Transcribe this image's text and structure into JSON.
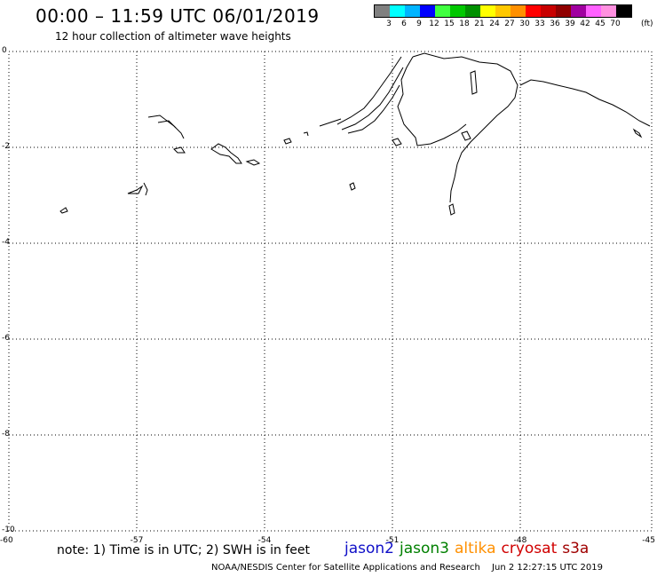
{
  "title": "00:00 – 11:59 UTC 06/01/2019",
  "subtitle": "12 hour collection of altimeter wave heights",
  "colorbar": {
    "colors": [
      "#808080",
      "#00ffff",
      "#00b4ff",
      "#0000ff",
      "#40ff40",
      "#00c800",
      "#009000",
      "#ffff00",
      "#ffc800",
      "#ff9000",
      "#ff0000",
      "#c80000",
      "#900000",
      "#a000a0",
      "#ff60ff",
      "#ff90e0",
      "#000000"
    ],
    "labels": [
      "3",
      "6",
      "9",
      "12",
      "15",
      "18",
      "21",
      "24",
      "27",
      "30",
      "33",
      "36",
      "39",
      "42",
      "45",
      "70"
    ],
    "unit": "(ft)"
  },
  "axes": {
    "y_ticks": [
      "0",
      "-2",
      "-4",
      "-6",
      "-8",
      "-10"
    ],
    "x_ticks": [
      "-60",
      "-57",
      "-54",
      "-51",
      "-48",
      "-45"
    ]
  },
  "note": "note:  1) Time is in UTC;  2) SWH is in feet",
  "legend": [
    {
      "name": "jason2",
      "color": "#1010c8"
    },
    {
      "name": "jason3",
      "color": "#008000"
    },
    {
      "name": "altika",
      "color": "#ff9000"
    },
    {
      "name": "cryosat",
      "color": "#d00000"
    },
    {
      "name": "s3a",
      "color": "#a00000"
    }
  ],
  "footer": {
    "credit": "NOAA/NESDIS Center for Satellite Applications and Research",
    "timestamp": "Jun  2 12:27:15 UTC 2019"
  }
}
